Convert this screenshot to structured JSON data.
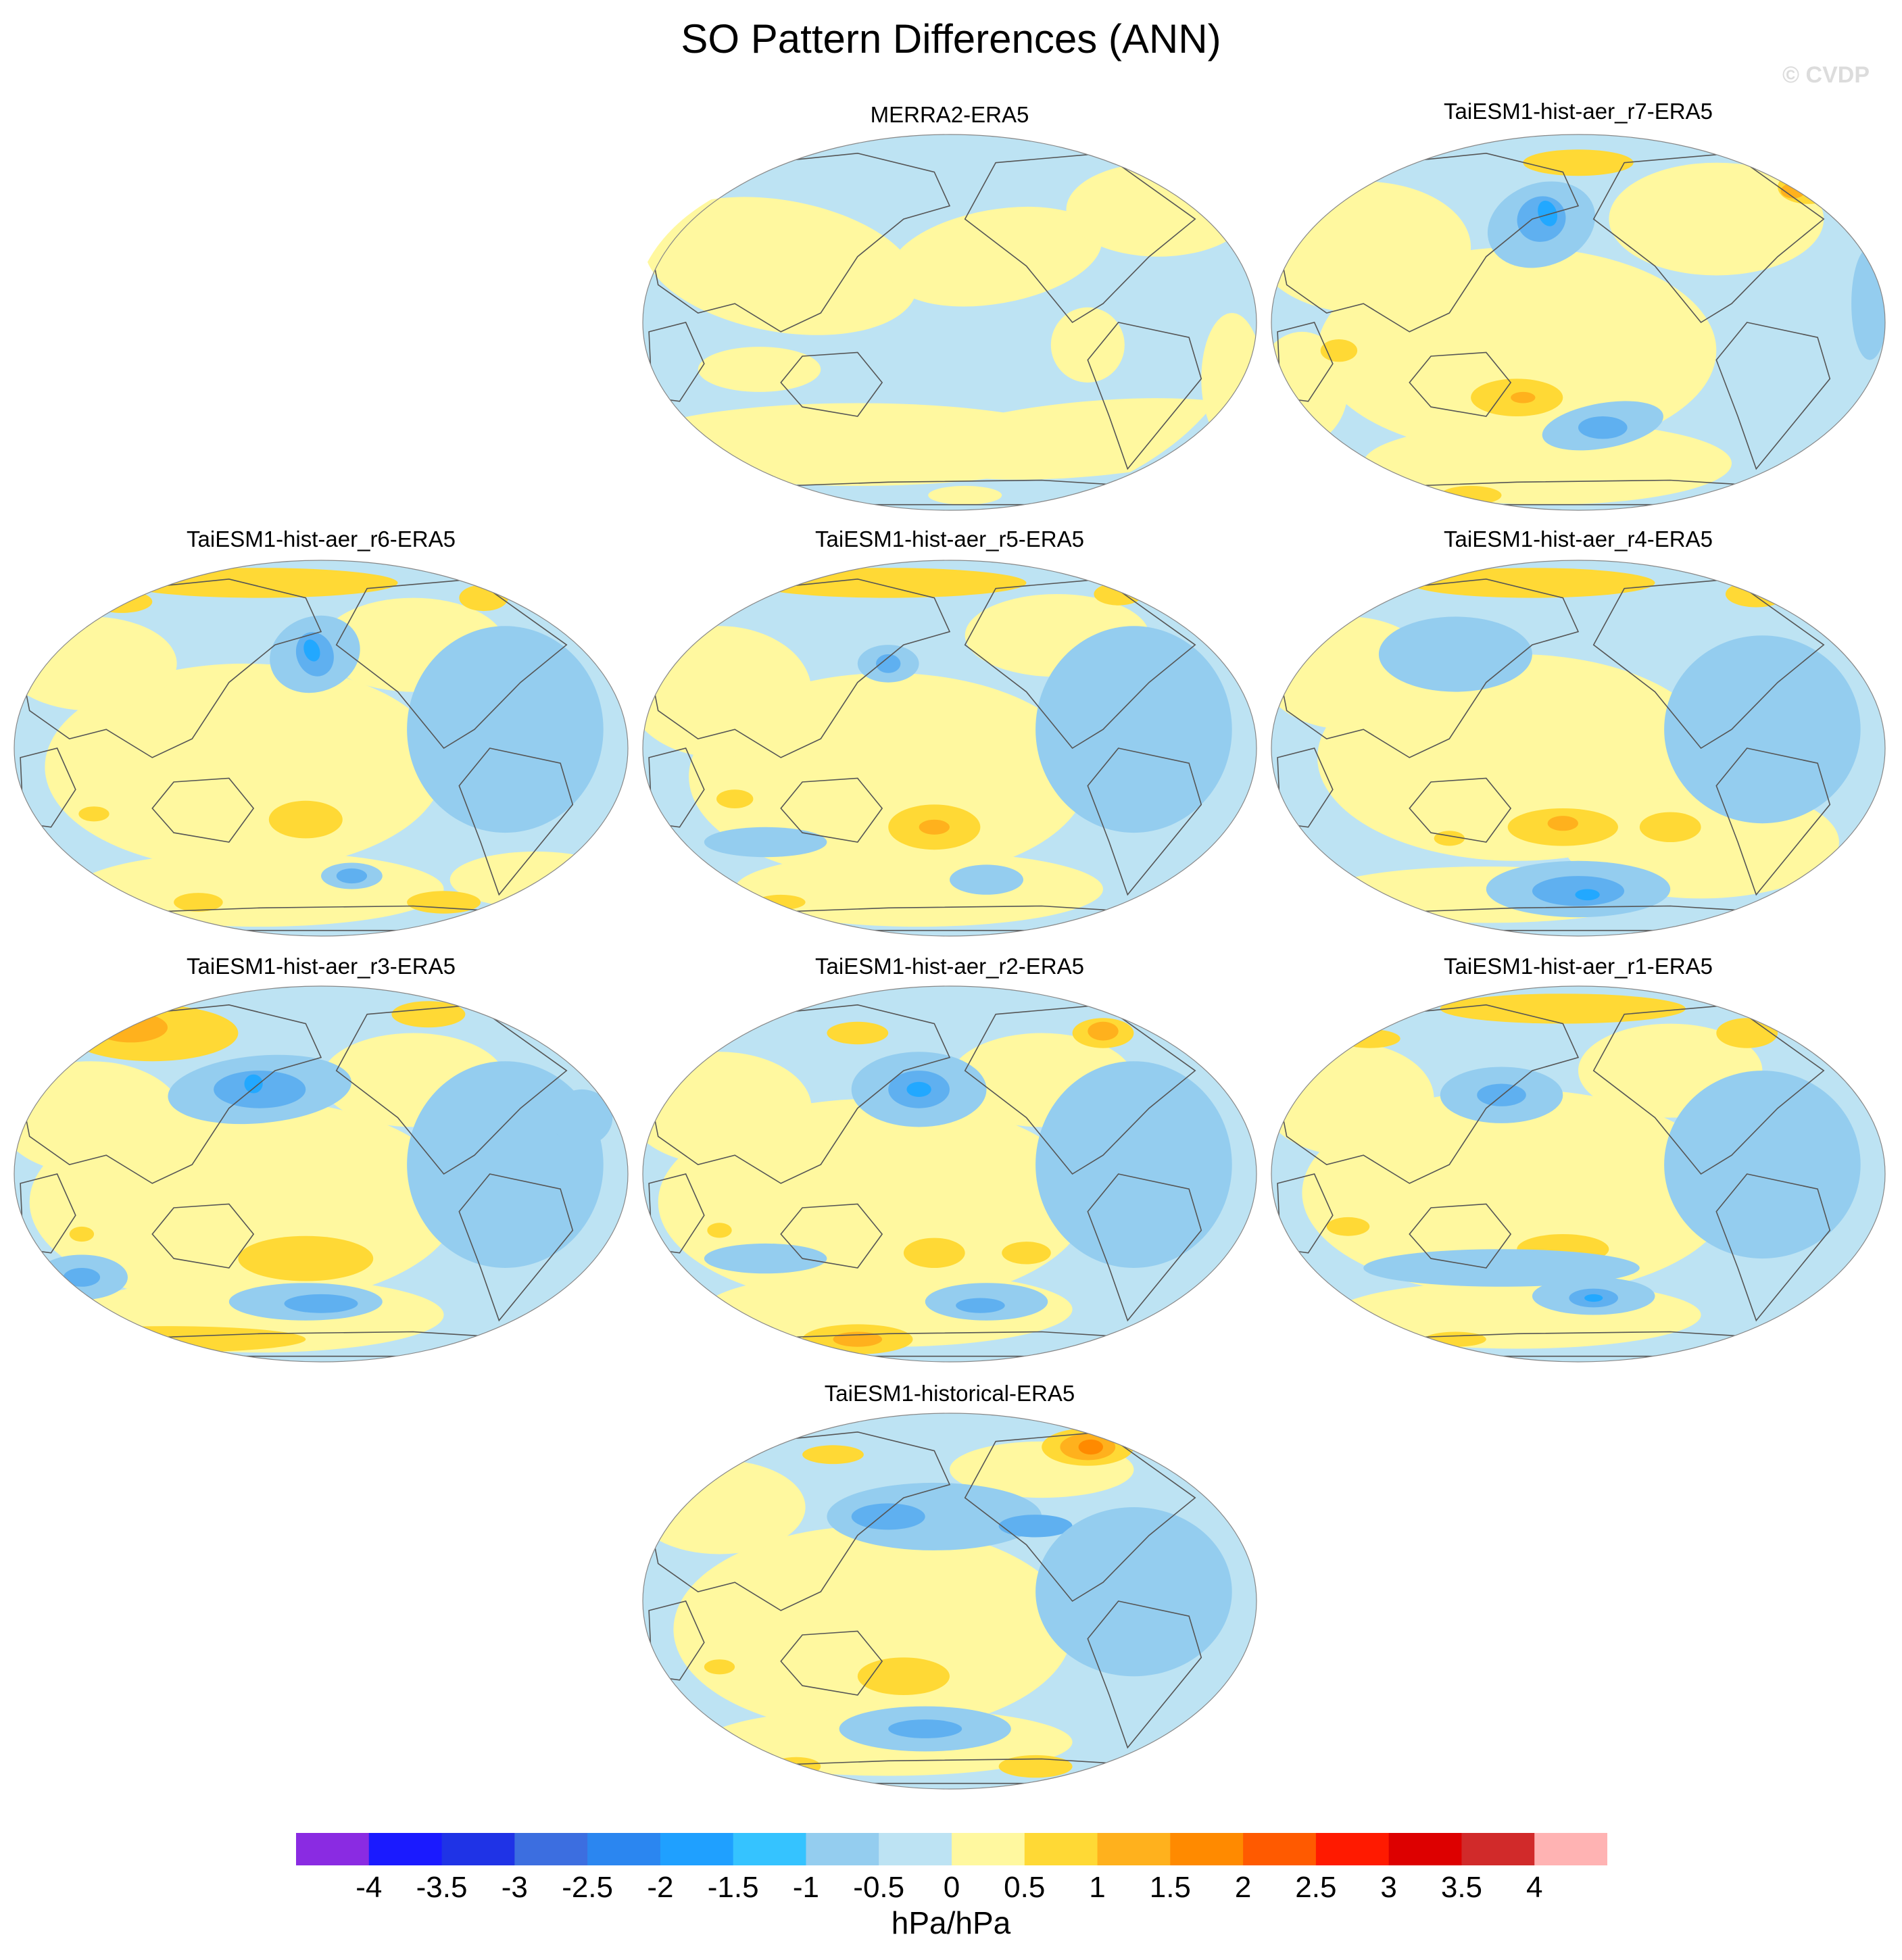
{
  "title": "SO Pattern Differences (ANN)",
  "watermark": "© CVDP",
  "units": "hPa/hPa",
  "colors": {
    "ocean_neutral_blue": "#bde3f3",
    "land_line": "#555555",
    "pale_yellow": "#fff89f",
    "yellow": "#ffd935",
    "orange": "#ffb11d",
    "dark_orange": "#ff8a00",
    "light_blue": "#94cdef",
    "mid_blue": "#5fb0f0",
    "cyan_blue": "#22a8ff"
  },
  "chart_data": {
    "type": "contour-map-panels",
    "projection": "Robinson (Pacific-centered)",
    "variable": "SO pattern differences",
    "season": "ANN",
    "colorbar": {
      "labels": [
        "-4",
        "-3.5",
        "-3",
        "-2.5",
        "-2",
        "-1.5",
        "-1",
        "-0.5",
        "0",
        "0.5",
        "1",
        "1.5",
        "2",
        "2.5",
        "3",
        "3.5",
        "4"
      ],
      "colors": [
        "#8a2be2",
        "#1a1aff",
        "#1f33e6",
        "#3c6ee0",
        "#2b86f0",
        "#1fa0ff",
        "#35c3ff",
        "#94cdef",
        "#bde3f3",
        "#fff89f",
        "#ffd935",
        "#ffb11d",
        "#ff8a00",
        "#ff5a00",
        "#ff1a00",
        "#dd0000",
        "#d12a2a",
        "#ffb3b3"
      ]
    },
    "panels": [
      {
        "id": "p1",
        "title": "MERRA2-ERA5"
      },
      {
        "id": "p2",
        "title": "TaiESM1-hist-aer_r7-ERA5"
      },
      {
        "id": "p3",
        "title": "TaiESM1-hist-aer_r6-ERA5"
      },
      {
        "id": "p4",
        "title": "TaiESM1-hist-aer_r5-ERA5"
      },
      {
        "id": "p5",
        "title": "TaiESM1-hist-aer_r4-ERA5"
      },
      {
        "id": "p6",
        "title": "TaiESM1-hist-aer_r3-ERA5"
      },
      {
        "id": "p7",
        "title": "TaiESM1-hist-aer_r2-ERA5"
      },
      {
        "id": "p8",
        "title": "TaiESM1-hist-aer_r1-ERA5"
      },
      {
        "id": "p9",
        "title": "TaiESM1-historical-ERA5"
      }
    ]
  }
}
